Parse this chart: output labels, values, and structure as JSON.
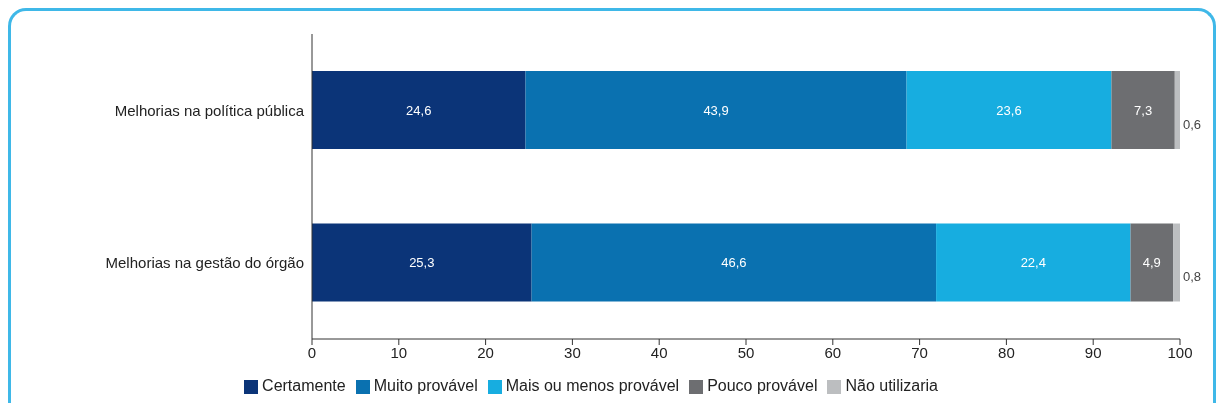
{
  "chart_data": {
    "type": "bar",
    "orientation": "horizontal",
    "stacked": true,
    "categories": [
      "Melhorias na política pública",
      "Melhorias na gestão do órgão"
    ],
    "series": [
      {
        "name": "Certamente",
        "color": "#0b3478",
        "values": [
          24.6,
          25.3
        ],
        "value_labels": [
          "24,6",
          "25,3"
        ]
      },
      {
        "name": "Muito provável",
        "color": "#0a71b0",
        "values": [
          43.9,
          46.6
        ],
        "value_labels": [
          "43,9",
          "46,6"
        ]
      },
      {
        "name": "Mais ou menos provável",
        "color": "#17ade0",
        "values": [
          23.6,
          22.4
        ],
        "value_labels": [
          "23,6",
          "22,4"
        ]
      },
      {
        "name": "Pouco provável",
        "color": "#6d6e71",
        "values": [
          7.3,
          4.9
        ],
        "value_labels": [
          "7,3",
          "4,9"
        ]
      },
      {
        "name": "Não utilizaria",
        "color": "#bcbec0",
        "values": [
          0.6,
          0.8
        ],
        "value_labels": [
          "0,6",
          "0,8"
        ]
      }
    ],
    "xlim": [
      0,
      100
    ],
    "xticks": [
      0,
      10,
      20,
      30,
      40,
      50,
      60,
      70,
      80,
      90,
      100
    ],
    "grid": false,
    "legend": "bottom"
  }
}
